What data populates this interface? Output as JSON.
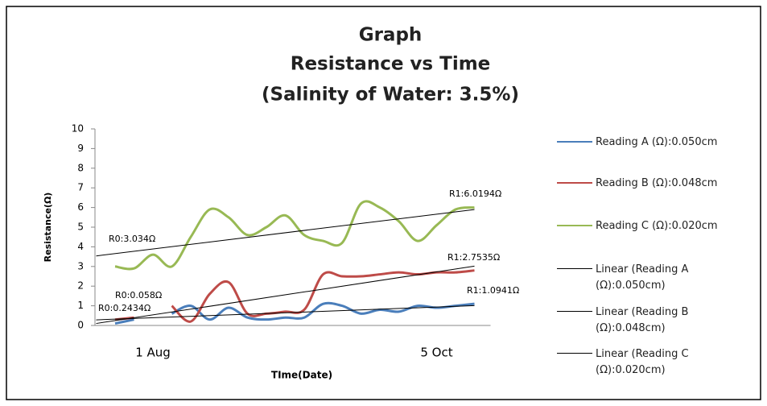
{
  "chart_data": {
    "type": "line",
    "title": [
      "Graph",
      "Resistance vs Time",
      "(Salinity of Water: 3.5%)"
    ],
    "x_label": "TIme(Date)",
    "y_label": "Resistance(Ω)",
    "categories": [
      null,
      null,
      "1 Aug",
      null,
      null,
      null,
      null,
      null,
      null,
      null,
      null,
      null,
      null,
      null,
      null,
      null,
      null,
      "5 Oct",
      null,
      null
    ],
    "ylim": [
      0,
      10
    ],
    "yticks": [
      0,
      1,
      2,
      3,
      4,
      5,
      6,
      7,
      8,
      9,
      10
    ],
    "grid": false,
    "legend": "right",
    "series": [
      {
        "name": "Reading A (Ω):0.050cm",
        "color": "#4a7ebb",
        "trendline": "Linear (Reading A (Ω):0.050cm)",
        "values": [
          0.1,
          0.3,
          null,
          0.6,
          1.0,
          0.3,
          0.9,
          0.4,
          0.3,
          0.4,
          0.4,
          1.1,
          1.0,
          0.6,
          0.8,
          0.7,
          1.0,
          0.9,
          1.0,
          1.1
        ]
      },
      {
        "name": "Reading B (Ω):0.048cm",
        "color": "#be4b48",
        "trendline": "Linear (Reading B (Ω):0.048cm)",
        "values": [
          0.3,
          0.4,
          null,
          1.0,
          0.2,
          1.6,
          2.2,
          0.6,
          0.6,
          0.7,
          0.8,
          2.6,
          2.5,
          2.5,
          2.6,
          2.7,
          2.6,
          2.7,
          2.7,
          2.8
        ]
      },
      {
        "name": "Reading C (Ω):0.020cm",
        "color": "#98b954",
        "trendline": "Linear (Reading C (Ω):0.020cm)",
        "values": [
          3.0,
          2.9,
          3.6,
          3.0,
          4.5,
          5.9,
          5.5,
          4.6,
          5.0,
          5.6,
          4.6,
          4.3,
          4.2,
          6.2,
          6.0,
          5.3,
          4.3,
          5.1,
          5.9,
          6.0
        ]
      }
    ],
    "annotations": [
      "R0:3.034Ω",
      "R1:6.0194Ω",
      "R0:0.058Ω",
      "R1:2.7535Ω",
      "R0:0.2434Ω",
      "R1:1.0941Ω"
    ]
  }
}
